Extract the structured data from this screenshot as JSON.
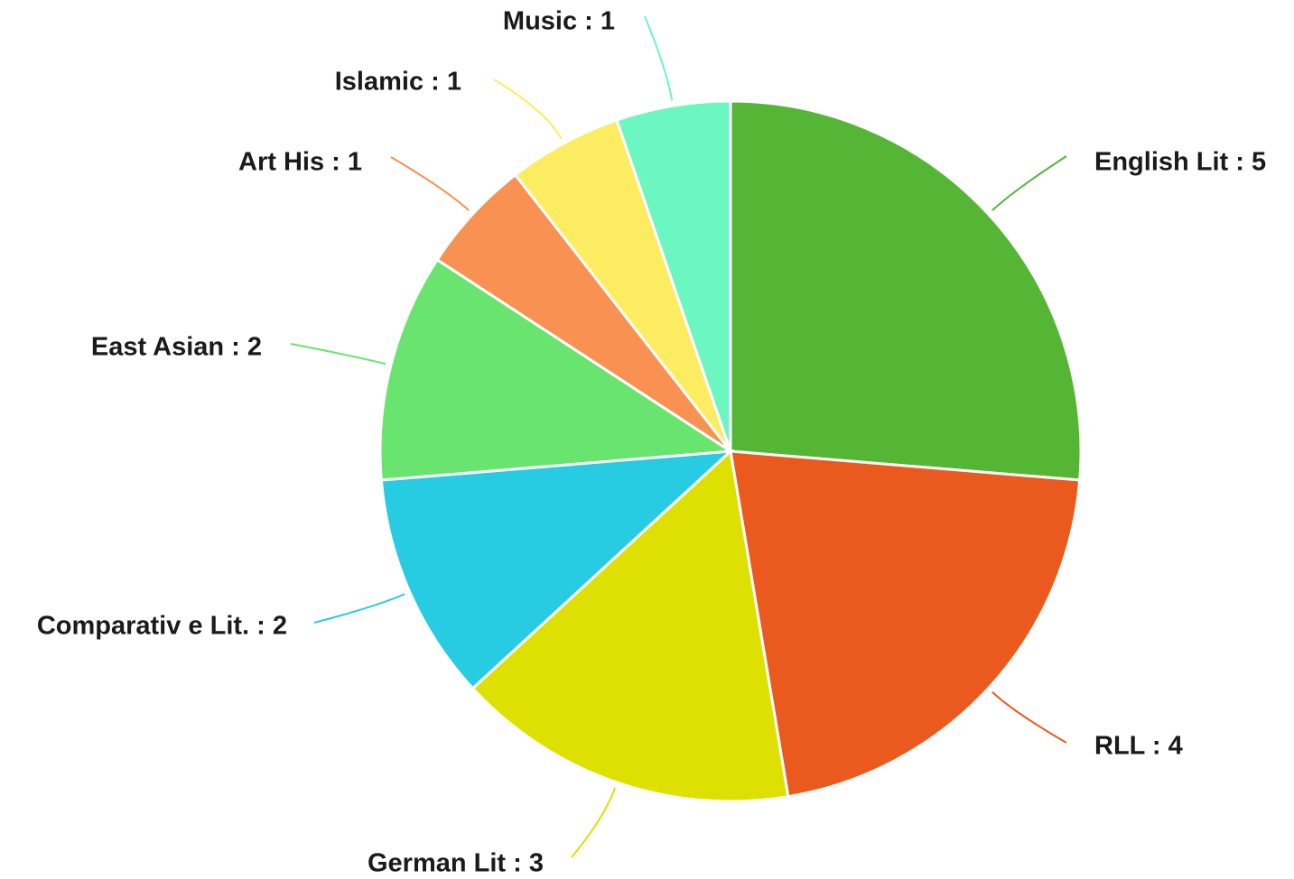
{
  "chart_data": {
    "type": "pie",
    "title": "",
    "legend": "none",
    "label_format": "name : value",
    "slices": [
      {
        "name": "English Lit",
        "value": 5,
        "color": "#55b535"
      },
      {
        "name": "RLL",
        "value": 4,
        "color": "#ea5a1f"
      },
      {
        "name": "German Lit",
        "value": 3,
        "color": "#dde000"
      },
      {
        "name": "Comparativ e Lit.",
        "value": 2,
        "color": "#27cbe2"
      },
      {
        "name": "East Asian",
        "value": 2,
        "color": "#68e46f"
      },
      {
        "name": "Art His",
        "value": 1,
        "color": "#f89151"
      },
      {
        "name": "Islamic",
        "value": 1,
        "color": "#fcec62"
      },
      {
        "name": "Music",
        "value": 1,
        "color": "#6cf6c1"
      }
    ]
  }
}
